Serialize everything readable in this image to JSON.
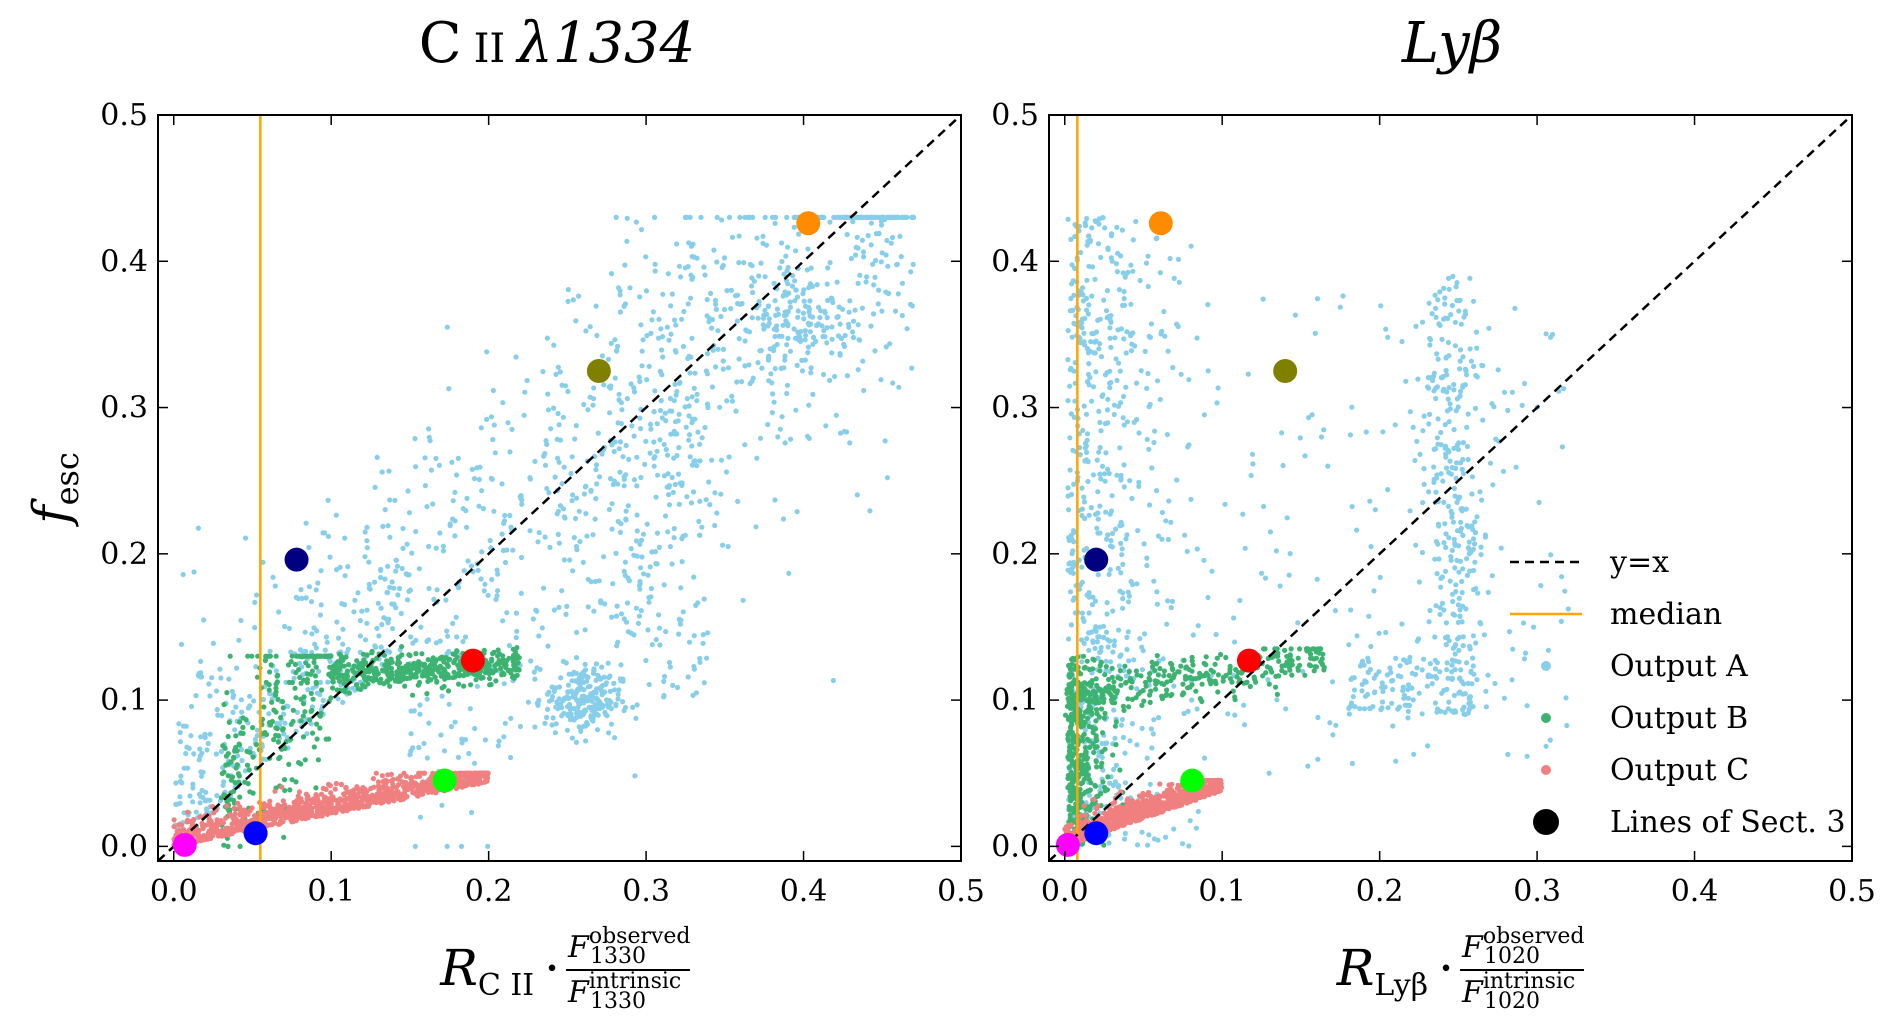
{
  "colors": {
    "output_a": "#87ceeb",
    "output_b": "#3cb371",
    "output_c": "#f08080",
    "median": "#ffa500",
    "identity": "#000000"
  },
  "legend": {
    "entries": [
      {
        "key": "identity",
        "label": "y=x",
        "style": "dashed-line"
      },
      {
        "key": "median",
        "label": "median",
        "style": "line"
      },
      {
        "key": "output_a",
        "label": "Output A",
        "style": "dot"
      },
      {
        "key": "output_b",
        "label": "Output B",
        "style": "dot"
      },
      {
        "key": "output_c",
        "label": "Output C",
        "style": "dot"
      },
      {
        "key": "lines_sect3",
        "label": "Lines of Sect. 3",
        "style": "big-dot"
      }
    ]
  },
  "chart_data": [
    {
      "type": "scatter",
      "title": "C II λ1334",
      "title_parts": {
        "element": "C",
        "ion": "II",
        "lambda": "λ1334"
      },
      "xlabel": "R_CII · F_1330^observed / F_1330^intrinsic",
      "xlabel_parts": {
        "R": "R",
        "R_sub": "C II",
        "op": "·",
        "F_num": "F",
        "F_num_sup": "observed",
        "F_num_sub": "1330",
        "F_den": "F",
        "F_den_sup": "intrinsic",
        "F_den_sub": "1330"
      },
      "ylabel": "f_esc",
      "ylabel_parts": {
        "main": "f",
        "sub": "esc"
      },
      "xlim": [
        -0.01,
        0.5
      ],
      "ylim": [
        -0.01,
        0.5
      ],
      "xticks": [
        "0.0",
        "0.1",
        "0.2",
        "0.3",
        "0.4",
        "0.5"
      ],
      "yticks": [
        "0.0",
        "0.1",
        "0.2",
        "0.3",
        "0.4",
        "0.5"
      ],
      "median_x": 0.055,
      "identity_line": true,
      "clouds": {
        "output_a": {
          "count": 1400,
          "x_range": [
            0.0,
            0.48
          ],
          "y_range": [
            0.0,
            0.43
          ],
          "trend": "diagonal-wide"
        },
        "output_b": {
          "count": 700,
          "x_range": [
            0.02,
            0.22
          ],
          "y_range": [
            0.0,
            0.14
          ],
          "trend": "rising-flat"
        },
        "output_c": {
          "count": 900,
          "x_range": [
            0.0,
            0.2
          ],
          "y_range": [
            0.0,
            0.05
          ],
          "trend": "low-band"
        }
      },
      "highlight_points": [
        {
          "name": "orange",
          "color": "#ff8c00",
          "x": 0.403,
          "y": 0.426
        },
        {
          "name": "olive",
          "color": "#808000",
          "x": 0.27,
          "y": 0.325
        },
        {
          "name": "navy",
          "color": "#000080",
          "x": 0.078,
          "y": 0.196
        },
        {
          "name": "red",
          "color": "#ff0000",
          "x": 0.19,
          "y": 0.127
        },
        {
          "name": "lime",
          "color": "#00ff00",
          "x": 0.172,
          "y": 0.045
        },
        {
          "name": "blue",
          "color": "#0000ff",
          "x": 0.052,
          "y": 0.009
        },
        {
          "name": "magenta",
          "color": "#ff00ff",
          "x": 0.007,
          "y": 0.001
        }
      ]
    },
    {
      "type": "scatter",
      "title": "Lyβ",
      "title_parts": {
        "text": "Lyβ"
      },
      "xlabel": "R_Lyβ · F_1020^observed / F_1020^intrinsic",
      "xlabel_parts": {
        "R": "R",
        "R_sub": "Lyβ",
        "op": "·",
        "F_num": "F",
        "F_num_sup": "observed",
        "F_num_sub": "1020",
        "F_den": "F",
        "F_den_sup": "intrinsic",
        "F_den_sub": "1020"
      },
      "ylabel": "",
      "xlim": [
        -0.01,
        0.5
      ],
      "ylim": [
        -0.01,
        0.5
      ],
      "xticks": [
        "0.0",
        "0.1",
        "0.2",
        "0.3",
        "0.4",
        "0.5"
      ],
      "yticks": [
        "0.0",
        "0.1",
        "0.2",
        "0.3",
        "0.4",
        "0.5"
      ],
      "median_x": 0.008,
      "identity_line": true,
      "clouds": {
        "output_a": {
          "count": 1400,
          "x_range": [
            0.0,
            0.32
          ],
          "y_range": [
            0.0,
            0.43
          ],
          "trend": "vertical-two-columns"
        },
        "output_b": {
          "count": 700,
          "x_range": [
            0.0,
            0.165
          ],
          "y_range": [
            0.0,
            0.135
          ],
          "trend": "vertical-then-flat"
        },
        "output_c": {
          "count": 900,
          "x_range": [
            0.0,
            0.1
          ],
          "y_range": [
            0.0,
            0.045
          ],
          "trend": "low-band"
        }
      },
      "highlight_points": [
        {
          "name": "orange",
          "color": "#ff8c00",
          "x": 0.061,
          "y": 0.426
        },
        {
          "name": "olive",
          "color": "#808000",
          "x": 0.14,
          "y": 0.325
        },
        {
          "name": "navy",
          "color": "#000080",
          "x": 0.02,
          "y": 0.196
        },
        {
          "name": "red",
          "color": "#ff0000",
          "x": 0.117,
          "y": 0.127
        },
        {
          "name": "lime",
          "color": "#00ff00",
          "x": 0.081,
          "y": 0.045
        },
        {
          "name": "blue",
          "color": "#0000ff",
          "x": 0.02,
          "y": 0.009
        },
        {
          "name": "magenta",
          "color": "#ff00ff",
          "x": 0.002,
          "y": 0.001
        }
      ]
    }
  ]
}
